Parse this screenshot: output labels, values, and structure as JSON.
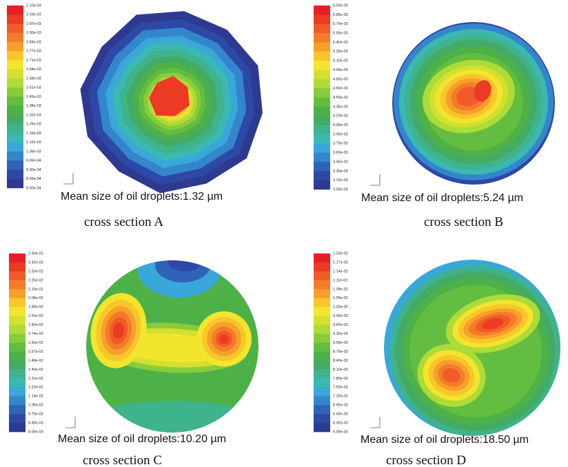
{
  "panels": [
    {
      "colorbar": [
        "2.10e-03",
        "2.03e-03",
        "1.97e-03",
        "1.90e-03",
        "1.84e-03",
        "1.77e-03",
        "1.71e-03",
        "1.64e-03",
        "1.58e-03",
        "1.51e-03",
        "1.45e-03",
        "1.38e-03",
        "1.32e-03",
        "1.25e-03",
        "1.19e-03",
        "1.12e-03",
        "1.06e-03",
        "9.95e-04",
        "9.30e-04",
        "8.65e-04",
        "8.00e-04"
      ],
      "caption": "Mean size of oil droplets:1.32 µm",
      "label": "cross section A"
    },
    {
      "colorbar": [
        "6.00e-03",
        "5.85e-03",
        "5.70e-03",
        "5.55e-03",
        "5.40e-03",
        "5.25e-03",
        "5.10e-03",
        "4.95e-03",
        "4.80e-03",
        "4.65e-03",
        "4.50e-03",
        "4.35e-03",
        "4.20e-03",
        "4.05e-03",
        "3.90e-03",
        "3.75e-03",
        "3.60e-03",
        "3.45e-03",
        "3.30e-03",
        "3.15e-03",
        "3.00e-03"
      ],
      "caption": "Mean size of oil droplets:5.24 µm",
      "label": "cross section B"
    },
    {
      "colorbar": [
        "2.50e-02",
        "2.42e-02",
        "2.33e-02",
        "2.25e-02",
        "2.16e-02",
        "2.08e-02",
        "1.99e-02",
        "1.91e-02",
        "1.82e-02",
        "1.74e-02",
        "1.65e-02",
        "1.57e-02",
        "1.48e-02",
        "1.40e-02",
        "1.31e-02",
        "1.23e-02",
        "1.14e-02",
        "1.06e-02",
        "9.70e-03",
        "8.85e-03",
        "8.00e-03"
      ],
      "caption": "Mean size of oil droplets:10.20 µm",
      "label": "cross section C"
    },
    {
      "colorbar": [
        "1.20e-02",
        "1.17e-02",
        "1.14e-02",
        "1.11e-02",
        "1.08e-02",
        "1.05e-02",
        "1.02e-02",
        "9.90e-03",
        "9.60e-03",
        "9.30e-03",
        "9.00e-03",
        "8.70e-03",
        "8.40e-03",
        "8.10e-03",
        "7.80e-03",
        "7.50e-03",
        "7.20e-03",
        "6.90e-03",
        "6.60e-03",
        "6.30e-03",
        "6.00e-03"
      ],
      "caption": "Mean size of oil droplets:18.50 µm",
      "label": "cross section D"
    }
  ]
}
